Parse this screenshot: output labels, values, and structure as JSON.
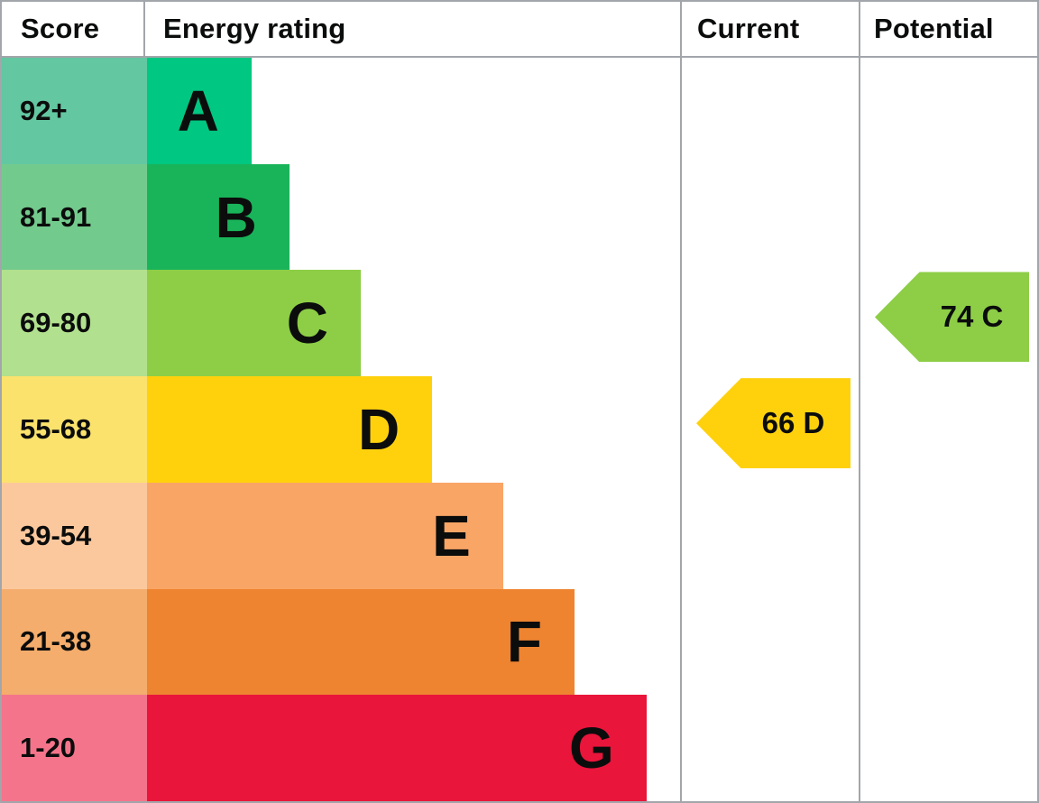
{
  "header": {
    "score": "Score",
    "energy_rating": "Energy rating",
    "current": "Current",
    "potential": "Potential"
  },
  "bands": [
    {
      "score": "92+",
      "letter": "A",
      "bar_color": "#00c781",
      "score_color": "#63c7a2",
      "bar_width_pct": 19.6
    },
    {
      "score": "81-91",
      "letter": "B",
      "bar_color": "#19b459",
      "score_color": "#73ca8d",
      "bar_width_pct": 26.7
    },
    {
      "score": "69-80",
      "letter": "C",
      "bar_color": "#8dce46",
      "score_color": "#b1e08e",
      "bar_width_pct": 40.1
    },
    {
      "score": "55-68",
      "letter": "D",
      "bar_color": "#ffd10d",
      "score_color": "#fbe26d",
      "bar_width_pct": 53.5
    },
    {
      "score": "39-54",
      "letter": "E",
      "bar_color": "#f9a566",
      "score_color": "#fbc89d",
      "bar_width_pct": 66.8
    },
    {
      "score": "21-38",
      "letter": "F",
      "bar_color": "#ee8430",
      "score_color": "#f4ad6c",
      "bar_width_pct": 80.2
    },
    {
      "score": "1-20",
      "letter": "G",
      "bar_color": "#e9153b",
      "score_color": "#f4758b",
      "bar_width_pct": 93.7
    }
  ],
  "markers": {
    "current": {
      "label": "66 D",
      "band_letter": "D",
      "row_index": 3,
      "color": "#ffd10d"
    },
    "potential": {
      "label": "74 C",
      "band_letter": "C",
      "row_index": 2,
      "color": "#8dce46"
    }
  },
  "colors": {
    "border": "#a2a6ab"
  },
  "chart_data": {
    "type": "bar",
    "title": "Energy rating (EPC)",
    "categories": [
      "A",
      "B",
      "C",
      "D",
      "E",
      "F",
      "G"
    ],
    "score_ranges": [
      "92+",
      "81-91",
      "69-80",
      "55-68",
      "39-54",
      "21-38",
      "1-20"
    ],
    "band_colors": [
      "#00c781",
      "#19b459",
      "#8dce46",
      "#ffd10d",
      "#f9a566",
      "#ee8430",
      "#e9153b"
    ],
    "bar_width_pct": [
      19.6,
      26.7,
      40.1,
      53.5,
      66.8,
      80.2,
      93.7
    ],
    "columns": [
      "Score",
      "Energy rating",
      "Current",
      "Potential"
    ],
    "current": {
      "score": 66,
      "band": "D"
    },
    "potential": {
      "score": 74,
      "band": "C"
    },
    "legend_position": "none",
    "grid": false
  }
}
